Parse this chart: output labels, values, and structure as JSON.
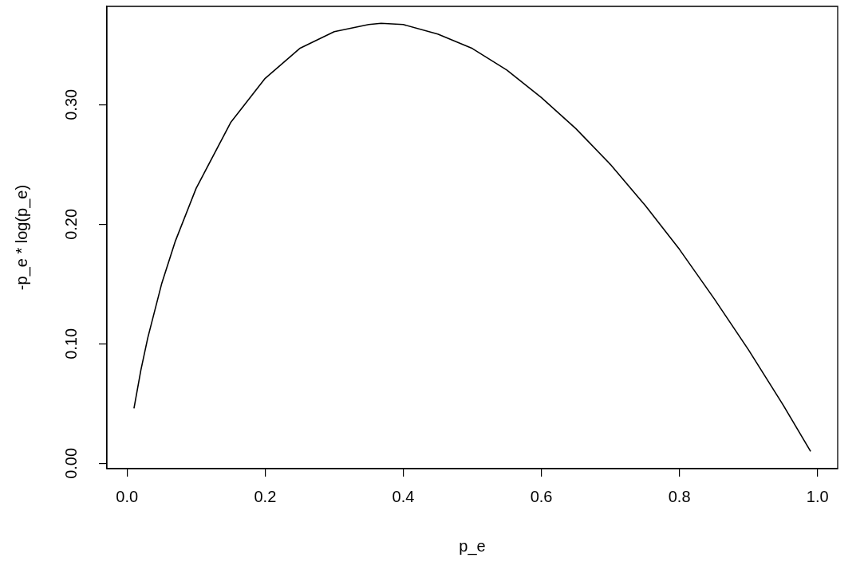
{
  "chart_data": {
    "type": "line",
    "xlabel": "p_e",
    "ylabel": "-p_e * log(p_e)",
    "x": [
      0.01,
      0.02,
      0.03,
      0.05,
      0.07,
      0.1,
      0.15,
      0.2,
      0.25,
      0.3,
      0.35,
      0.3679,
      0.4,
      0.45,
      0.5,
      0.55,
      0.6,
      0.65,
      0.7,
      0.75,
      0.8,
      0.85,
      0.9,
      0.95,
      0.99
    ],
    "series": [
      {
        "color": "#000000",
        "values": [
          0.046,
          0.078,
          0.105,
          0.15,
          0.186,
          0.23,
          0.285,
          0.322,
          0.347,
          0.361,
          0.367,
          0.368,
          0.367,
          0.359,
          0.347,
          0.329,
          0.306,
          0.28,
          0.25,
          0.216,
          0.179,
          0.138,
          0.095,
          0.049,
          0.01
        ]
      }
    ],
    "xlim": [
      -0.0292,
      1.0292
    ],
    "ylim": [
      -0.0044,
      0.3822
    ],
    "xticks": [
      {
        "value": 0,
        "label": "0.0"
      },
      {
        "value": 0.2,
        "label": "0.2"
      },
      {
        "value": 0.4,
        "label": "0.4"
      },
      {
        "value": 0.6,
        "label": "0.6"
      },
      {
        "value": 0.8,
        "label": "0.8"
      },
      {
        "value": 1,
        "label": "1.0"
      }
    ],
    "yticks": [
      {
        "value": 0,
        "label": "0.00"
      },
      {
        "value": 0.1,
        "label": "0.10"
      },
      {
        "value": 0.2,
        "label": "0.20"
      },
      {
        "value": 0.3,
        "label": "0.30"
      }
    ],
    "grid": false,
    "legend": false,
    "marker": "none",
    "line_style": "solid"
  }
}
